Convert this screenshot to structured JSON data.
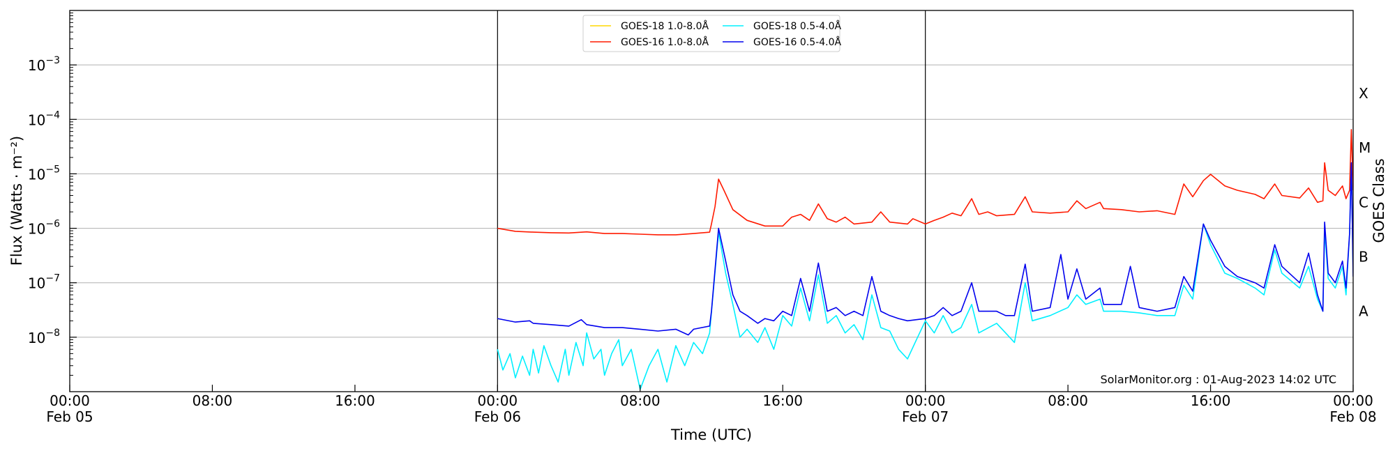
{
  "chart_data": {
    "type": "line",
    "xlabel": "Time (UTC)",
    "ylabel": "Flux (Watts · m⁻²)",
    "y2label": "GOES Class",
    "yscale": "log",
    "ylim": [
      1e-09,
      0.01
    ],
    "xlim_hours": [
      0,
      72
    ],
    "x_ticks": [
      {
        "h": 0,
        "time": "00:00",
        "date": "Feb 05"
      },
      {
        "h": 8,
        "time": "08:00",
        "date": ""
      },
      {
        "h": 16,
        "time": "16:00",
        "date": ""
      },
      {
        "h": 24,
        "time": "00:00",
        "date": "Feb 06"
      },
      {
        "h": 32,
        "time": "08:00",
        "date": ""
      },
      {
        "h": 40,
        "time": "16:00",
        "date": ""
      },
      {
        "h": 48,
        "time": "00:00",
        "date": "Feb 07"
      },
      {
        "h": 56,
        "time": "08:00",
        "date": ""
      },
      {
        "h": 64,
        "time": "16:00",
        "date": ""
      },
      {
        "h": 72,
        "time": "00:00",
        "date": "Feb 08"
      }
    ],
    "y_ticks": [
      {
        "value": 1e-08,
        "base": "10",
        "exp": "−8"
      },
      {
        "value": 1e-07,
        "base": "10",
        "exp": "−7"
      },
      {
        "value": 1e-06,
        "base": "10",
        "exp": "−6"
      },
      {
        "value": 1e-05,
        "base": "10",
        "exp": "−5"
      },
      {
        "value": 0.0001,
        "base": "10",
        "exp": "−4"
      },
      {
        "value": 0.001,
        "base": "10",
        "exp": "−3"
      }
    ],
    "goes_classes": [
      {
        "label": "A",
        "value": 3e-08
      },
      {
        "label": "B",
        "value": 3e-07
      },
      {
        "label": "C",
        "value": 3e-06
      },
      {
        "label": "M",
        "value": 3e-05
      },
      {
        "label": "X",
        "value": 0.0003
      }
    ],
    "day_boundaries_hours": [
      24,
      48
    ],
    "grid": "horizontal",
    "legend_position": "top-center",
    "credit": "SolarMonitor.org : 01-Aug-2023 14:02 UTC",
    "series": [
      {
        "name": "GOES-18 1.0-8.0Å",
        "color": "#ffd700",
        "points": []
      },
      {
        "name": "GOES-16 1.0-8.0Å",
        "color": "#ff1a00",
        "points": [
          [
            24,
            1e-06
          ],
          [
            25,
            8.8e-07
          ],
          [
            26,
            8.5e-07
          ],
          [
            27,
            8.3e-07
          ],
          [
            28,
            8.2e-07
          ],
          [
            29,
            8.6e-07
          ],
          [
            30,
            8e-07
          ],
          [
            31,
            8e-07
          ],
          [
            32,
            7.8e-07
          ],
          [
            33,
            7.6e-07
          ],
          [
            34,
            7.6e-07
          ],
          [
            35,
            8e-07
          ],
          [
            35.9,
            8.5e-07
          ],
          [
            36,
            1.2e-06
          ],
          [
            36.2,
            2.5e-06
          ],
          [
            36.4,
            8e-06
          ],
          [
            36.7,
            5e-06
          ],
          [
            37.2,
            2.2e-06
          ],
          [
            38,
            1.4e-06
          ],
          [
            39,
            1.1e-06
          ],
          [
            40,
            1.1e-06
          ],
          [
            40.5,
            1.6e-06
          ],
          [
            41,
            1.8e-06
          ],
          [
            41.5,
            1.4e-06
          ],
          [
            42,
            2.8e-06
          ],
          [
            42.5,
            1.5e-06
          ],
          [
            43,
            1.3e-06
          ],
          [
            43.5,
            1.6e-06
          ],
          [
            44,
            1.2e-06
          ],
          [
            45,
            1.3e-06
          ],
          [
            45.5,
            2e-06
          ],
          [
            46,
            1.3e-06
          ],
          [
            47,
            1.2e-06
          ],
          [
            47.3,
            1.5e-06
          ],
          [
            48,
            1.2e-06
          ],
          [
            48.5,
            1.4e-06
          ],
          [
            49,
            1.6e-06
          ],
          [
            49.5,
            1.9e-06
          ],
          [
            50,
            1.7e-06
          ],
          [
            50.6,
            3.5e-06
          ],
          [
            51,
            1.8e-06
          ],
          [
            51.5,
            2e-06
          ],
          [
            52,
            1.7e-06
          ],
          [
            53,
            1.8e-06
          ],
          [
            53.6,
            3.8e-06
          ],
          [
            54,
            2e-06
          ],
          [
            55,
            1.9e-06
          ],
          [
            56,
            2e-06
          ],
          [
            56.5,
            3.2e-06
          ],
          [
            57,
            2.3e-06
          ],
          [
            57.8,
            3e-06
          ],
          [
            58,
            2.3e-06
          ],
          [
            59,
            2.2e-06
          ],
          [
            60,
            2e-06
          ],
          [
            61,
            2.1e-06
          ],
          [
            62,
            1.8e-06
          ],
          [
            62.5,
            6.5e-06
          ],
          [
            63,
            3.8e-06
          ],
          [
            63.6,
            7.5e-06
          ],
          [
            64,
            9.8e-06
          ],
          [
            64.8,
            6e-06
          ],
          [
            65.5,
            5e-06
          ],
          [
            66.5,
            4.2e-06
          ],
          [
            67,
            3.5e-06
          ],
          [
            67.6,
            6.5e-06
          ],
          [
            68,
            4e-06
          ],
          [
            69,
            3.6e-06
          ],
          [
            69.5,
            5.5e-06
          ],
          [
            70,
            3e-06
          ],
          [
            70.3,
            3.2e-06
          ],
          [
            70.4,
            1.6e-05
          ],
          [
            70.6,
            5e-06
          ],
          [
            71,
            4e-06
          ],
          [
            71.4,
            6e-06
          ],
          [
            71.6,
            3.5e-06
          ],
          [
            71.8,
            5e-06
          ],
          [
            71.9,
            6.5e-05
          ],
          [
            72,
            5e-06
          ]
        ]
      },
      {
        "name": "GOES-18 0.5-4.0Å",
        "color": "#00f0ff",
        "points": [
          [
            24,
            6e-09
          ],
          [
            24.3,
            2.5e-09
          ],
          [
            24.7,
            5e-09
          ],
          [
            25,
            1.8e-09
          ],
          [
            25.4,
            4.5e-09
          ],
          [
            25.8,
            2e-09
          ],
          [
            26,
            6e-09
          ],
          [
            26.3,
            2.2e-09
          ],
          [
            26.6,
            7e-09
          ],
          [
            27,
            3e-09
          ],
          [
            27.4,
            1.5e-09
          ],
          [
            27.8,
            6e-09
          ],
          [
            28,
            2e-09
          ],
          [
            28.4,
            8e-09
          ],
          [
            28.8,
            3e-09
          ],
          [
            29,
            1.2e-08
          ],
          [
            29.4,
            4e-09
          ],
          [
            29.8,
            6e-09
          ],
          [
            30,
            2e-09
          ],
          [
            30.4,
            5e-09
          ],
          [
            30.8,
            9e-09
          ],
          [
            31,
            3e-09
          ],
          [
            31.5,
            6e-09
          ],
          [
            32,
            1.1e-09
          ],
          [
            32.5,
            3e-09
          ],
          [
            33,
            6e-09
          ],
          [
            33.5,
            1.5e-09
          ],
          [
            34,
            7e-09
          ],
          [
            34.5,
            3e-09
          ],
          [
            35,
            8e-09
          ],
          [
            35.5,
            5e-09
          ],
          [
            35.9,
            1.2e-08
          ],
          [
            36.4,
            8.5e-07
          ],
          [
            36.8,
            1.5e-07
          ],
          [
            37.2,
            4e-08
          ],
          [
            37.6,
            1e-08
          ],
          [
            38,
            1.4e-08
          ],
          [
            38.6,
            8e-09
          ],
          [
            39,
            1.5e-08
          ],
          [
            39.5,
            6e-09
          ],
          [
            40,
            2.5e-08
          ],
          [
            40.5,
            1.6e-08
          ],
          [
            41,
            8e-08
          ],
          [
            41.5,
            2e-08
          ],
          [
            42,
            1.4e-07
          ],
          [
            42.5,
            1.8e-08
          ],
          [
            43,
            2.5e-08
          ],
          [
            43.5,
            1.2e-08
          ],
          [
            44,
            1.7e-08
          ],
          [
            44.5,
            9e-09
          ],
          [
            45,
            6e-08
          ],
          [
            45.5,
            1.5e-08
          ],
          [
            46,
            1.3e-08
          ],
          [
            46.5,
            6e-09
          ],
          [
            47,
            4e-09
          ],
          [
            47.5,
            9e-09
          ],
          [
            48,
            2e-08
          ],
          [
            48.5,
            1.2e-08
          ],
          [
            49,
            2.5e-08
          ],
          [
            49.5,
            1.2e-08
          ],
          [
            50,
            1.5e-08
          ],
          [
            50.6,
            4e-08
          ],
          [
            51,
            1.2e-08
          ],
          [
            52,
            1.8e-08
          ],
          [
            52.5,
            1.2e-08
          ],
          [
            53,
            8e-09
          ],
          [
            53.6,
            1e-07
          ],
          [
            54,
            2e-08
          ],
          [
            55,
            2.5e-08
          ],
          [
            56,
            3.5e-08
          ],
          [
            56.5,
            6e-08
          ],
          [
            57,
            4e-08
          ],
          [
            57.8,
            5e-08
          ],
          [
            58,
            3e-08
          ],
          [
            59,
            3e-08
          ],
          [
            60,
            2.8e-08
          ],
          [
            61,
            2.5e-08
          ],
          [
            62,
            2.5e-08
          ],
          [
            62.5,
            9e-08
          ],
          [
            63,
            5e-08
          ],
          [
            63.6,
            1.2e-06
          ],
          [
            64,
            5e-07
          ],
          [
            64.8,
            1.5e-07
          ],
          [
            65.5,
            1.2e-07
          ],
          [
            66.5,
            8e-08
          ],
          [
            67,
            6e-08
          ],
          [
            67.6,
            4e-07
          ],
          [
            68,
            1.5e-07
          ],
          [
            69,
            8e-08
          ],
          [
            69.5,
            2e-07
          ],
          [
            70,
            5e-08
          ],
          [
            70.3,
            3e-08
          ],
          [
            70.4,
            9e-07
          ],
          [
            70.6,
            1.2e-07
          ],
          [
            71,
            8e-08
          ],
          [
            71.4,
            2e-07
          ],
          [
            71.6,
            6e-08
          ],
          [
            71.8,
            8e-07
          ],
          [
            71.9,
            1.6e-05
          ],
          [
            72,
            1.5e-07
          ]
        ]
      },
      {
        "name": "GOES-16 0.5-4.0Å",
        "color": "#0000ee",
        "points": [
          [
            24,
            2.2e-08
          ],
          [
            25,
            1.9e-08
          ],
          [
            25.8,
            2e-08
          ],
          [
            26,
            1.8e-08
          ],
          [
            27,
            1.7e-08
          ],
          [
            28,
            1.6e-08
          ],
          [
            28.7,
            2.1e-08
          ],
          [
            29,
            1.7e-08
          ],
          [
            30,
            1.5e-08
          ],
          [
            31,
            1.5e-08
          ],
          [
            32,
            1.4e-08
          ],
          [
            33,
            1.3e-08
          ],
          [
            34,
            1.4e-08
          ],
          [
            34.7,
            1.1e-08
          ],
          [
            35,
            1.4e-08
          ],
          [
            35.9,
            1.6e-08
          ],
          [
            36,
            3e-08
          ],
          [
            36.4,
            1e-06
          ],
          [
            36.8,
            2.5e-07
          ],
          [
            37.2,
            6e-08
          ],
          [
            37.6,
            3e-08
          ],
          [
            38,
            2.5e-08
          ],
          [
            38.6,
            1.8e-08
          ],
          [
            39,
            2.2e-08
          ],
          [
            39.5,
            2e-08
          ],
          [
            40,
            3e-08
          ],
          [
            40.5,
            2.5e-08
          ],
          [
            41,
            1.2e-07
          ],
          [
            41.5,
            3e-08
          ],
          [
            42,
            2.3e-07
          ],
          [
            42.5,
            3e-08
          ],
          [
            43,
            3.5e-08
          ],
          [
            43.5,
            2.5e-08
          ],
          [
            44,
            3e-08
          ],
          [
            44.5,
            2.5e-08
          ],
          [
            45,
            1.3e-07
          ],
          [
            45.5,
            3e-08
          ],
          [
            46,
            2.5e-08
          ],
          [
            46.5,
            2.2e-08
          ],
          [
            47,
            2e-08
          ],
          [
            48,
            2.2e-08
          ],
          [
            48.5,
            2.5e-08
          ],
          [
            49,
            3.5e-08
          ],
          [
            49.5,
            2.5e-08
          ],
          [
            50,
            3e-08
          ],
          [
            50.6,
            1e-07
          ],
          [
            51,
            3e-08
          ],
          [
            52,
            3e-08
          ],
          [
            52.5,
            2.5e-08
          ],
          [
            53,
            2.5e-08
          ],
          [
            53.6,
            2.2e-07
          ],
          [
            54,
            3e-08
          ],
          [
            55,
            3.5e-08
          ],
          [
            55.6,
            3.3e-07
          ],
          [
            56,
            5e-08
          ],
          [
            56.5,
            1.8e-07
          ],
          [
            57,
            5e-08
          ],
          [
            57.8,
            8e-08
          ],
          [
            58,
            4e-08
          ],
          [
            59,
            4e-08
          ],
          [
            59.5,
            2e-07
          ],
          [
            60,
            3.5e-08
          ],
          [
            61,
            3e-08
          ],
          [
            62,
            3.5e-08
          ],
          [
            62.5,
            1.3e-07
          ],
          [
            63,
            7e-08
          ],
          [
            63.6,
            1.2e-06
          ],
          [
            64,
            6e-07
          ],
          [
            64.8,
            2e-07
          ],
          [
            65.5,
            1.3e-07
          ],
          [
            66.5,
            1e-07
          ],
          [
            67,
            8e-08
          ],
          [
            67.6,
            5e-07
          ],
          [
            68,
            2e-07
          ],
          [
            69,
            1e-07
          ],
          [
            69.5,
            3.5e-07
          ],
          [
            70,
            6e-08
          ],
          [
            70.3,
            3e-08
          ],
          [
            70.4,
            1.3e-06
          ],
          [
            70.6,
            1.5e-07
          ],
          [
            71,
            1e-07
          ],
          [
            71.4,
            2.5e-07
          ],
          [
            71.6,
            8e-08
          ],
          [
            71.8,
            8e-07
          ],
          [
            71.9,
            1.6e-05
          ],
          [
            72,
            1.3e-07
          ]
        ]
      }
    ]
  }
}
